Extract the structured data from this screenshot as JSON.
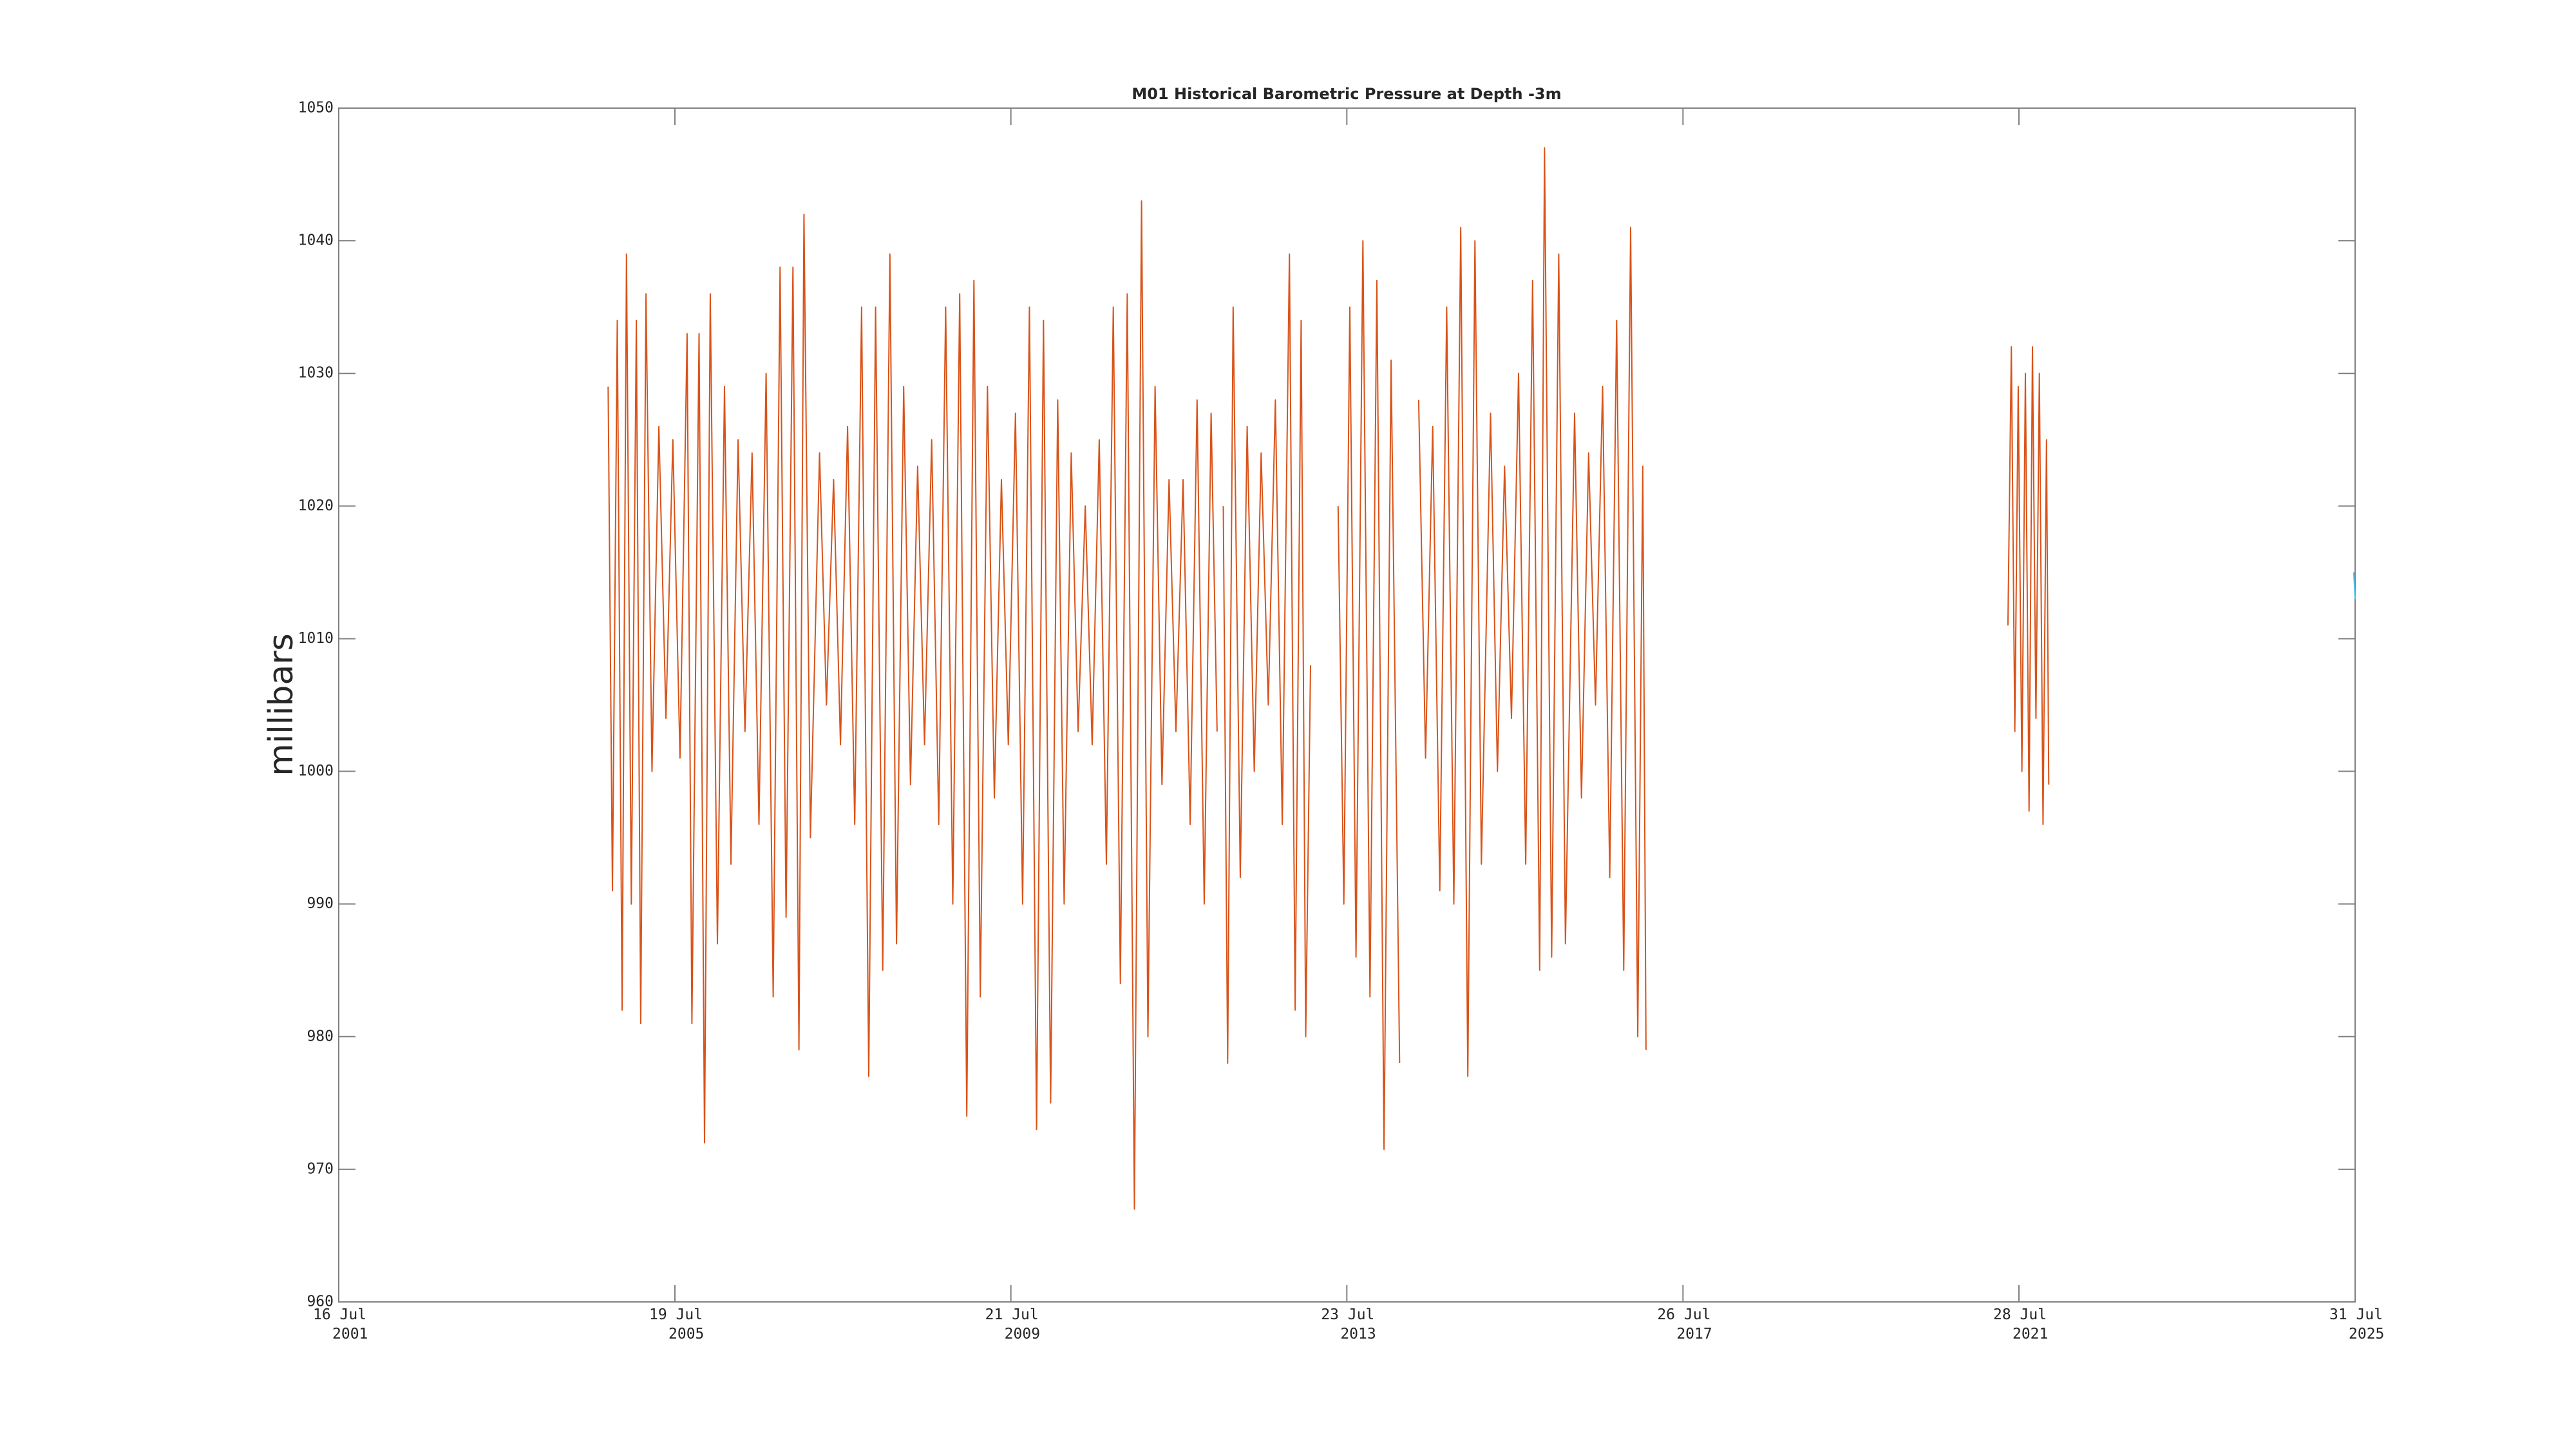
{
  "chart_data": {
    "type": "line",
    "title": "M01 Historical Barometric Pressure at Depth -3m",
    "ylabel": "millibars",
    "xlim": [
      "2001-07-16",
      "2025-07-31"
    ],
    "xticks": [
      {
        "value": "2001-07-16",
        "label": "16 Jul 2001"
      },
      {
        "value": "2005-07-19",
        "label": "19 Jul 2005"
      },
      {
        "value": "2009-07-21",
        "label": "21 Jul 2009"
      },
      {
        "value": "2013-07-23",
        "label": "23 Jul 2013"
      },
      {
        "value": "2017-07-26",
        "label": "26 Jul 2017"
      },
      {
        "value": "2021-07-28",
        "label": "28 Jul 2021"
      },
      {
        "value": "2025-07-31",
        "label": "31 Jul 2025"
      }
    ],
    "ylim": [
      960,
      1050
    ],
    "yticks": [
      960,
      970,
      980,
      990,
      1000,
      1010,
      1020,
      1030,
      1040,
      1050
    ],
    "grid": false,
    "series": [
      {
        "color": "#d95319",
        "x": [
          "2004-10-01",
          "2004-10-20",
          "2004-11-10",
          "2004-12-01",
          "2004-12-20",
          "2005-01-10",
          "2005-02-01",
          "2005-02-20",
          "2005-03-15",
          "2005-04-10",
          "2005-05-10",
          "2005-06-10",
          "2005-07-10",
          "2005-08-10",
          "2005-09-10",
          "2005-10-01",
          "2005-11-01",
          "2005-11-25",
          "2005-12-20",
          "2006-01-20",
          "2006-02-20",
          "2006-03-20",
          "2006-04-20",
          "2006-05-20",
          "2006-06-20",
          "2006-07-20",
          "2006-08-20",
          "2006-09-20",
          "2006-10-20",
          "2006-11-15",
          "2006-12-15",
          "2007-01-10",
          "2007-02-01",
          "2007-03-01",
          "2007-04-10",
          "2007-05-10",
          "2007-06-10",
          "2007-07-10",
          "2007-08-10",
          "2007-09-10",
          "2007-10-10",
          "2007-11-10",
          "2007-12-10",
          "2008-01-10",
          "2008-02-10",
          "2008-03-10",
          "2008-04-10",
          "2008-05-10",
          "2008-06-10",
          "2008-07-10",
          "2008-08-10",
          "2008-09-10",
          "2008-10-10",
          "2008-11-10",
          "2008-12-10",
          "2009-01-10",
          "2009-02-10",
          "2009-03-10",
          "2009-04-10",
          "2009-05-10",
          "2009-06-10",
          "2009-07-10",
          "2009-08-10",
          "2009-09-10",
          "2009-10-10",
          "2009-11-10",
          "2009-12-10",
          "2010-01-10",
          "2010-02-10",
          "2010-03-10",
          "2010-04-10",
          "2010-05-10",
          "2010-06-10",
          "2010-07-10",
          "2010-08-10",
          "2010-09-10",
          "2010-10-10",
          "2010-11-10",
          "2010-12-10",
          "2011-01-10",
          "2011-02-10",
          "2011-03-10",
          "2011-04-10",
          "2011-05-10",
          "2011-06-10",
          "2011-07-10",
          "2011-08-10",
          "2011-09-10",
          "2011-10-10",
          "2011-11-10",
          "2011-12-10",
          "2012-01-05",
          "2012-01-18",
          "2012-02-01",
          "2012-02-20",
          "2012-03-15",
          "2012-04-15",
          "2012-05-15",
          "2012-06-15",
          "2012-07-15",
          "2012-08-15",
          "2012-09-15",
          "2012-10-15",
          "2012-11-15",
          "2012-12-10",
          "2013-01-05",
          "2013-01-25",
          "2013-02-15",
          "2013-04-01",
          "2013-06-15",
          "2013-07-10",
          "2013-08-05",
          "2013-09-01",
          "2013-10-01",
          "2013-11-01",
          "2013-12-01",
          "2014-01-01",
          "2014-02-01",
          "2014-03-10",
          "2014-04-20",
          "2014-06-01",
          "2014-07-01",
          "2014-08-01",
          "2014-09-01",
          "2014-10-01",
          "2014-11-01",
          "2014-12-01",
          "2015-01-01",
          "2015-02-01",
          "2015-03-01",
          "2015-04-10",
          "2015-05-10",
          "2015-06-10",
          "2015-07-10",
          "2015-08-10",
          "2015-09-10",
          "2015-10-10",
          "2015-11-10",
          "2015-12-01",
          "2016-01-01",
          "2016-02-01",
          "2016-03-01",
          "2016-04-10",
          "2016-05-10",
          "2016-06-10",
          "2016-07-10",
          "2016-08-10",
          "2016-09-10",
          "2016-10-10",
          "2016-11-10",
          "2016-12-10",
          "2017-01-10",
          "2017-02-01",
          "2017-02-15",
          "2019-01-01",
          "2021-06-10",
          "2021-06-25",
          "2021-07-10",
          "2021-07-25",
          "2021-08-10",
          "2021-08-25",
          "2021-09-10",
          "2021-09-25",
          "2021-10-10",
          "2021-10-25",
          "2021-11-10",
          "2021-11-25",
          "2021-12-05"
        ],
        "values": [
          1029,
          991,
          1034,
          982,
          1039,
          990,
          1034,
          981,
          1036,
          1000,
          1026,
          1004,
          1025,
          1001,
          1033,
          981,
          1033,
          972,
          1036,
          987,
          1029,
          993,
          1025,
          1003,
          1024,
          996,
          1030,
          983,
          1038,
          989,
          1038,
          979,
          1042,
          995,
          1024,
          1005,
          1022,
          1002,
          1026,
          996,
          1035,
          977,
          1035,
          985,
          1039,
          987,
          1029,
          999,
          1023,
          1002,
          1025,
          996,
          1035,
          990,
          1036,
          974,
          1037,
          983,
          1029,
          998,
          1022,
          1002,
          1027,
          990,
          1035,
          973,
          1034,
          975,
          1028,
          990,
          1024,
          1003,
          1020,
          1002,
          1025,
          993,
          1035,
          984,
          1036,
          967,
          1043,
          980,
          1029,
          999,
          1022,
          1003,
          1022,
          996,
          1028,
          990,
          1027,
          1003,
          null,
          1020,
          978,
          1035,
          992,
          1026,
          1000,
          1024,
          1005,
          1028,
          996,
          1039,
          982,
          1034,
          980,
          1008,
          null,
          1020,
          990,
          1035,
          986,
          1040,
          983,
          1037,
          971.5,
          1031,
          978,
          null,
          1028,
          1001,
          1026,
          991,
          1035,
          990,
          1041,
          977,
          1040,
          993,
          1027,
          1000,
          1023,
          1004,
          1030,
          993,
          1037,
          985,
          1047,
          986,
          1039,
          987,
          1027,
          998,
          1024,
          1005,
          1029,
          992,
          1034,
          985,
          1041,
          980,
          1023,
          979,
          null,
          1011,
          1032,
          1003,
          1029,
          1000,
          1030,
          997,
          1032,
          1004,
          1030,
          996,
          1025,
          999
        ]
      },
      {
        "color": "#4dbeee",
        "x": [
          "2025-07-25",
          "2025-07-31"
        ],
        "values": [
          1015,
          1013
        ]
      }
    ]
  }
}
